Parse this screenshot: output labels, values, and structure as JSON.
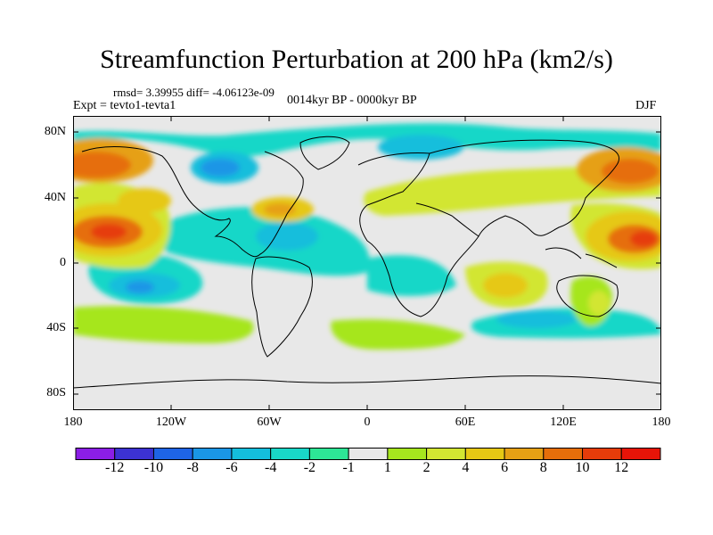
{
  "title": "Streamfunction Perturbation at 200 hPa (km2/s)",
  "stats": "rmsd= 3.39955 diff= -4.06123e-09",
  "experiment": "Expt = tevto1-tevta1",
  "period": "0014kyr BP - 0000kyr BP",
  "season": "DJF",
  "lat_labels": [
    "80N",
    "40N",
    "0",
    "40S",
    "80S"
  ],
  "lon_labels": [
    "180",
    "120W",
    "60W",
    "0",
    "60E",
    "120E",
    "180"
  ],
  "colorbar": {
    "labels": [
      "-12",
      "-10",
      "-8",
      "-6",
      "-4",
      "-2",
      "-1",
      "1",
      "2",
      "4",
      "6",
      "8",
      "10",
      "12"
    ],
    "colors": [
      "#8b1ee6",
      "#3c32d2",
      "#1e64e6",
      "#1a96e6",
      "#14bedc",
      "#19d7c8",
      "#2de696",
      "#e8e8e8",
      "#a6e61e",
      "#d2e632",
      "#e6c814",
      "#e6a014",
      "#e66e0a",
      "#e63c0a",
      "#e61408"
    ]
  },
  "colors": {
    "ocean": "#e8e8e8",
    "coast": "#000000"
  }
}
